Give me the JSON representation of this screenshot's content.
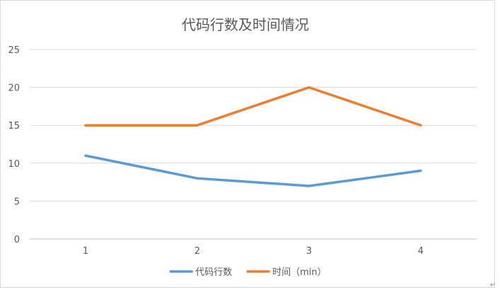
{
  "chart_data": {
    "type": "line",
    "title": "代码行数及时间情况",
    "xlabel": "",
    "ylabel": "",
    "categories": [
      "1",
      "2",
      "3",
      "4"
    ],
    "ylim": [
      0,
      25
    ],
    "yticks": [
      0,
      5,
      10,
      15,
      20,
      25
    ],
    "grid": true,
    "legend_position": "bottom",
    "series": [
      {
        "name": "代码行数",
        "values": [
          11,
          8,
          7,
          9
        ],
        "color": "#5B9BD5"
      },
      {
        "name": "时间（min）",
        "values": [
          15,
          15,
          20,
          15
        ],
        "color": "#ED7D31"
      }
    ]
  },
  "colors": {
    "frame": "#d9d9d9",
    "gridline": "#d9d9d9",
    "axis_line": "#bfbfbf",
    "title_text": "#595959",
    "tick_text": "#595959"
  },
  "paragraph_mark": "↵"
}
